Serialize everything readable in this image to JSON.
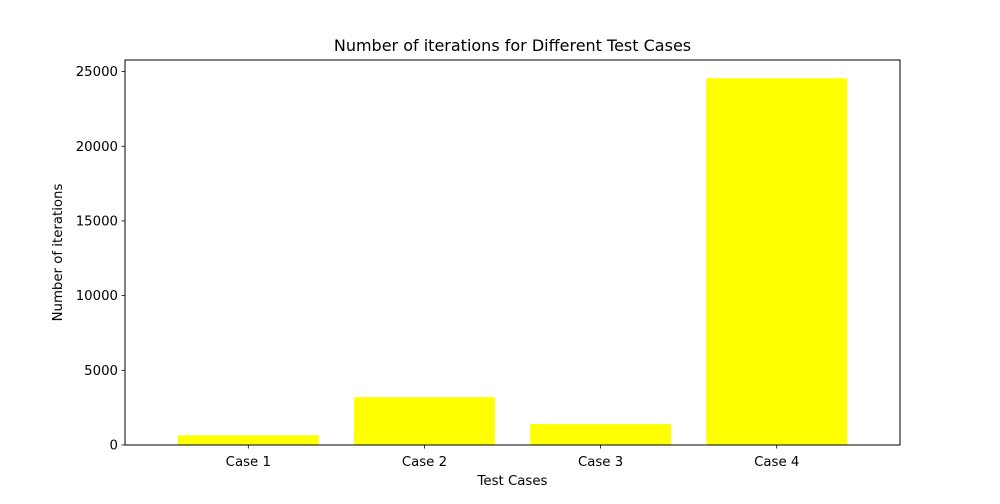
{
  "chart_data": {
    "type": "bar",
    "title": "Number of iterations for Different Test Cases",
    "xlabel": "Test Cases",
    "ylabel": "Number of iterations",
    "categories": [
      "Case 1",
      "Case 2",
      "Case 3",
      "Case 4"
    ],
    "values": [
      650,
      3200,
      1400,
      24550
    ],
    "ylim": [
      0,
      25775
    ],
    "yticks": [
      0,
      5000,
      10000,
      15000,
      20000,
      25000
    ],
    "ytick_labels": [
      "0",
      "5000",
      "10000",
      "15000",
      "20000",
      "25000"
    ],
    "bar_color": "#ffff00",
    "grid": false,
    "legend": "none"
  }
}
